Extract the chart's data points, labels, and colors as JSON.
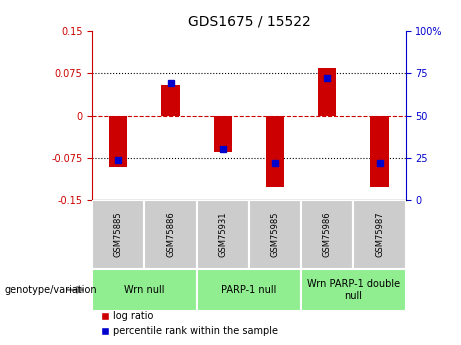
{
  "title": "GDS1675 / 15522",
  "samples": [
    "GSM75885",
    "GSM75886",
    "GSM75931",
    "GSM75985",
    "GSM75986",
    "GSM75987"
  ],
  "log_ratios": [
    -0.091,
    0.055,
    -0.065,
    -0.126,
    0.085,
    -0.126
  ],
  "percentiles": [
    24,
    69,
    30,
    22,
    72,
    22
  ],
  "ylim_left": [
    -0.15,
    0.15
  ],
  "ylim_right": [
    0,
    100
  ],
  "yticks_left": [
    -0.15,
    -0.075,
    0,
    0.075,
    0.15
  ],
  "yticks_right": [
    0,
    25,
    50,
    75,
    100
  ],
  "bar_color": "#cc0000",
  "percentile_color": "#0000cc",
  "bar_width": 0.35,
  "left_axis_color": "#cc0000",
  "right_axis_color": "#0000cc",
  "title_fontsize": 10,
  "tick_fontsize": 7,
  "sample_fontsize": 6,
  "group_fontsize": 7,
  "legend_fontsize": 7,
  "genotype_fontsize": 7,
  "groups": [
    {
      "label": "Wrn null",
      "start": 0,
      "end": 1
    },
    {
      "label": "PARP-1 null",
      "start": 2,
      "end": 3
    },
    {
      "label": "Wrn PARP-1 double\nnull",
      "start": 4,
      "end": 5
    }
  ],
  "group_color": "#90ee90",
  "sample_box_color": "#cccccc",
  "xlim": [
    -0.5,
    5.5
  ]
}
